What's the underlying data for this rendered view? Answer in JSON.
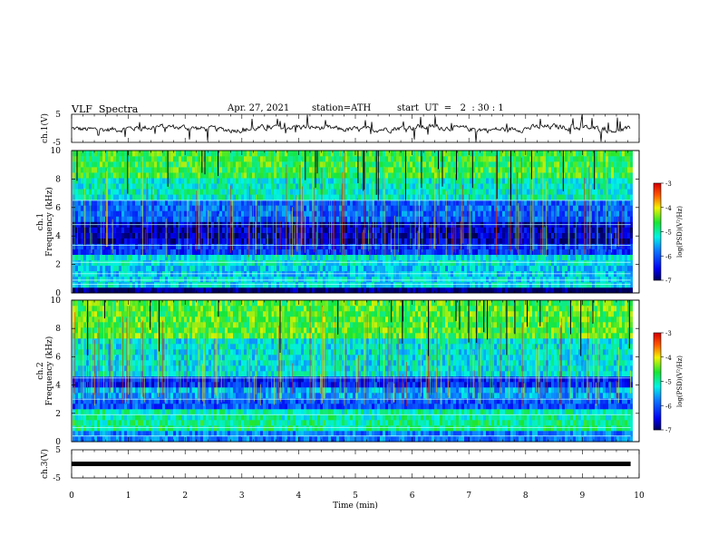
{
  "header": {
    "title": "VLF  Spectra",
    "date": "Apr. 27, 2021",
    "station": "station=ATH",
    "start": "start  UT  =   2  : 30 : 1"
  },
  "chart_data": [
    {
      "type": "line",
      "panel": "waveform-ch1",
      "ylabel": "ch.1(V)",
      "ylim": [
        -5,
        5
      ],
      "yticks": [
        "5",
        "-5"
      ],
      "xlim": [
        0,
        10
      ],
      "series": [
        {
          "mean_level": 0,
          "x_end": 9.85,
          "color": "#000000"
        }
      ]
    },
    {
      "type": "heatmap",
      "panel": "spectrogram-ch1",
      "ylabel_top": "ch.1",
      "ylabel": "Frequency  (kHz)",
      "ylim": [
        0,
        10
      ],
      "yticks": [
        "0",
        "2",
        "4",
        "6",
        "8",
        "10"
      ],
      "xlim": [
        0,
        10
      ],
      "x_end": 9.85,
      "bands": [
        {
          "from": 0,
          "to": 0.3,
          "level": -7
        },
        {
          "from": 0.3,
          "to": 1.0,
          "level": -5.3
        },
        {
          "from": 1.0,
          "to": 1.8,
          "level": -5.4
        },
        {
          "from": 1.8,
          "to": 2.5,
          "level": -5.2
        },
        {
          "from": 2.5,
          "to": 3.2,
          "level": -6.2
        },
        {
          "from": 3.2,
          "to": 5.0,
          "level": -6.7
        },
        {
          "from": 5.0,
          "to": 6.5,
          "level": -5.9
        },
        {
          "from": 6.5,
          "to": 8.0,
          "level": -5.1
        },
        {
          "from": 8.0,
          "to": 10.0,
          "level": -4.6
        }
      ],
      "lines_khz": [
        0.6,
        0.9,
        1.35,
        2.15,
        3.35,
        4.8,
        6.5
      ],
      "colorbar": {
        "label": "log(PSD)(V²/Hz)",
        "ticks": [
          "-3",
          "-4",
          "-5",
          "-6",
          "-7"
        ],
        "range": [
          -7,
          -3
        ]
      }
    },
    {
      "type": "heatmap",
      "panel": "spectrogram-ch2",
      "ylabel_top": "ch.2",
      "ylabel": "Frequency  (kHz)",
      "ylim": [
        0,
        10
      ],
      "yticks": [
        "0",
        "2",
        "4",
        "6",
        "8",
        "10"
      ],
      "xlim": [
        0,
        10
      ],
      "x_end": 9.85,
      "bands": [
        {
          "from": 0,
          "to": 0.4,
          "level": -5.8
        },
        {
          "from": 0.4,
          "to": 1.2,
          "level": -4.9
        },
        {
          "from": 1.2,
          "to": 2.0,
          "level": -5.0
        },
        {
          "from": 2.0,
          "to": 2.8,
          "level": -6.0
        },
        {
          "from": 2.8,
          "to": 3.6,
          "level": -5.6
        },
        {
          "from": 3.6,
          "to": 4.6,
          "level": -6.3
        },
        {
          "from": 4.6,
          "to": 7.0,
          "level": -5.2
        },
        {
          "from": 7.0,
          "to": 10.0,
          "level": -4.5
        }
      ],
      "lines_khz": [
        0.4,
        1.0,
        1.9,
        3.0,
        4.5
      ],
      "colorbar": {
        "label": "log(PSD)(V²/Hz)",
        "ticks": [
          "-3",
          "-4",
          "-5",
          "-6",
          "-7"
        ],
        "range": [
          -7,
          -3
        ]
      }
    },
    {
      "type": "line",
      "panel": "waveform-ch3",
      "ylabel": "ch.3(V)",
      "ylim": [
        -5,
        5
      ],
      "yticks": [
        "5",
        "-5"
      ],
      "xlabel": "Time  (min)",
      "xlim": [
        0,
        10
      ],
      "xticks": [
        "0",
        "1",
        "2",
        "3",
        "4",
        "5",
        "6",
        "7",
        "8",
        "9",
        "10"
      ],
      "series": [
        {
          "mean_level": 0,
          "x_end": 9.85,
          "color": "#000000"
        }
      ]
    }
  ]
}
